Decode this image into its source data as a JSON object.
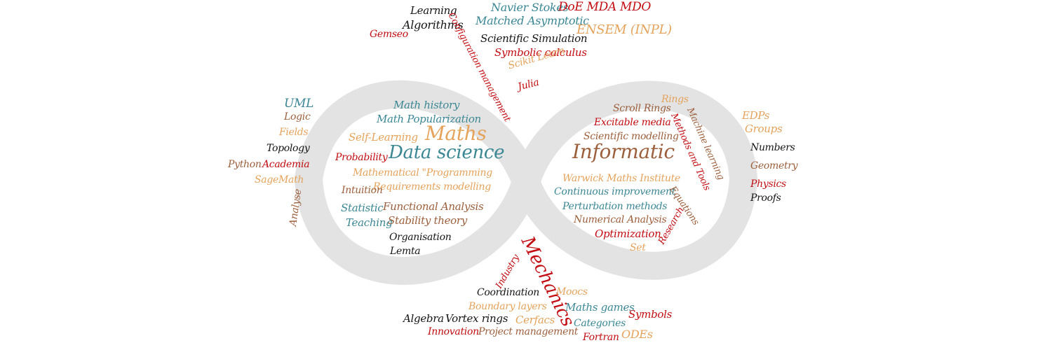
{
  "colors": {
    "blue": "#3b8794",
    "red": "#c20d13",
    "orange": "#e5a35c",
    "brown": "#9c5f3c",
    "black": "#151515",
    "infinity_shape": "#e3e3e3"
  },
  "words": {
    "w0": "Learning",
    "w1": "Algorithms",
    "w2": "Gemseo",
    "w3": "Configuration management",
    "w4": "Navier Stokes",
    "w5": "DoE MDA MDO",
    "w6": "Matched Asymptotic",
    "w7": "ENSEM (INPL)",
    "w8": "Scientific Simulation",
    "w9": "Symbolic calculus",
    "w10": "Scikit Learn",
    "w11": "Julia",
    "w12": "UML",
    "w13": "Logic",
    "w14": "Fields",
    "w15": "Topology",
    "w16": "Python",
    "w17": "Academia",
    "w18": "SageMath",
    "w19": "Analyse",
    "w20": "Math history",
    "w21": "Math Popularization",
    "w22": "Self-Learning",
    "w23": "Maths",
    "w24": "Probability",
    "w25": "Data science",
    "w26": "Mathematical \"Programming",
    "w27": "Requirements modelling",
    "w28": "Intuition",
    "w29": "Statistic",
    "w30": "Functional Analysis",
    "w31": "Teaching",
    "w32": "Stability theory",
    "w33": "Organisation",
    "w34": "Lemta",
    "w35": "Rings",
    "w36": "Scroll Rings",
    "w37": "Excitable media",
    "w38": "Scientific modelling",
    "w39": "Machine learning",
    "w40": "Methods and Tools",
    "w41": "Informatic",
    "w42": "Warwick Maths Institute",
    "w43": "Continuous improvement",
    "w44": "Equations",
    "w45": "Perturbation methods",
    "w46": "Research",
    "w47": "Numerical Analysis",
    "w48": "Optimization",
    "w49": "Set",
    "w50": "EDPs",
    "w51": "Groups",
    "w52": "Numbers",
    "w53": "Geometry",
    "w54": "Physics",
    "w55": "Proofs",
    "w56": "Mechanics",
    "w57": "Industry",
    "w58": "Coordination",
    "w59": "Moocs",
    "w60": "Boundary layers",
    "w61": "Maths games",
    "w62": "Algebra",
    "w63": "Vortex rings",
    "w64": "Cerfacs",
    "w65": "Symbols",
    "w66": "Categories",
    "w67": "Innovation",
    "w68": "Project management",
    "w69": "Fortran",
    "w70": "ODEs"
  }
}
